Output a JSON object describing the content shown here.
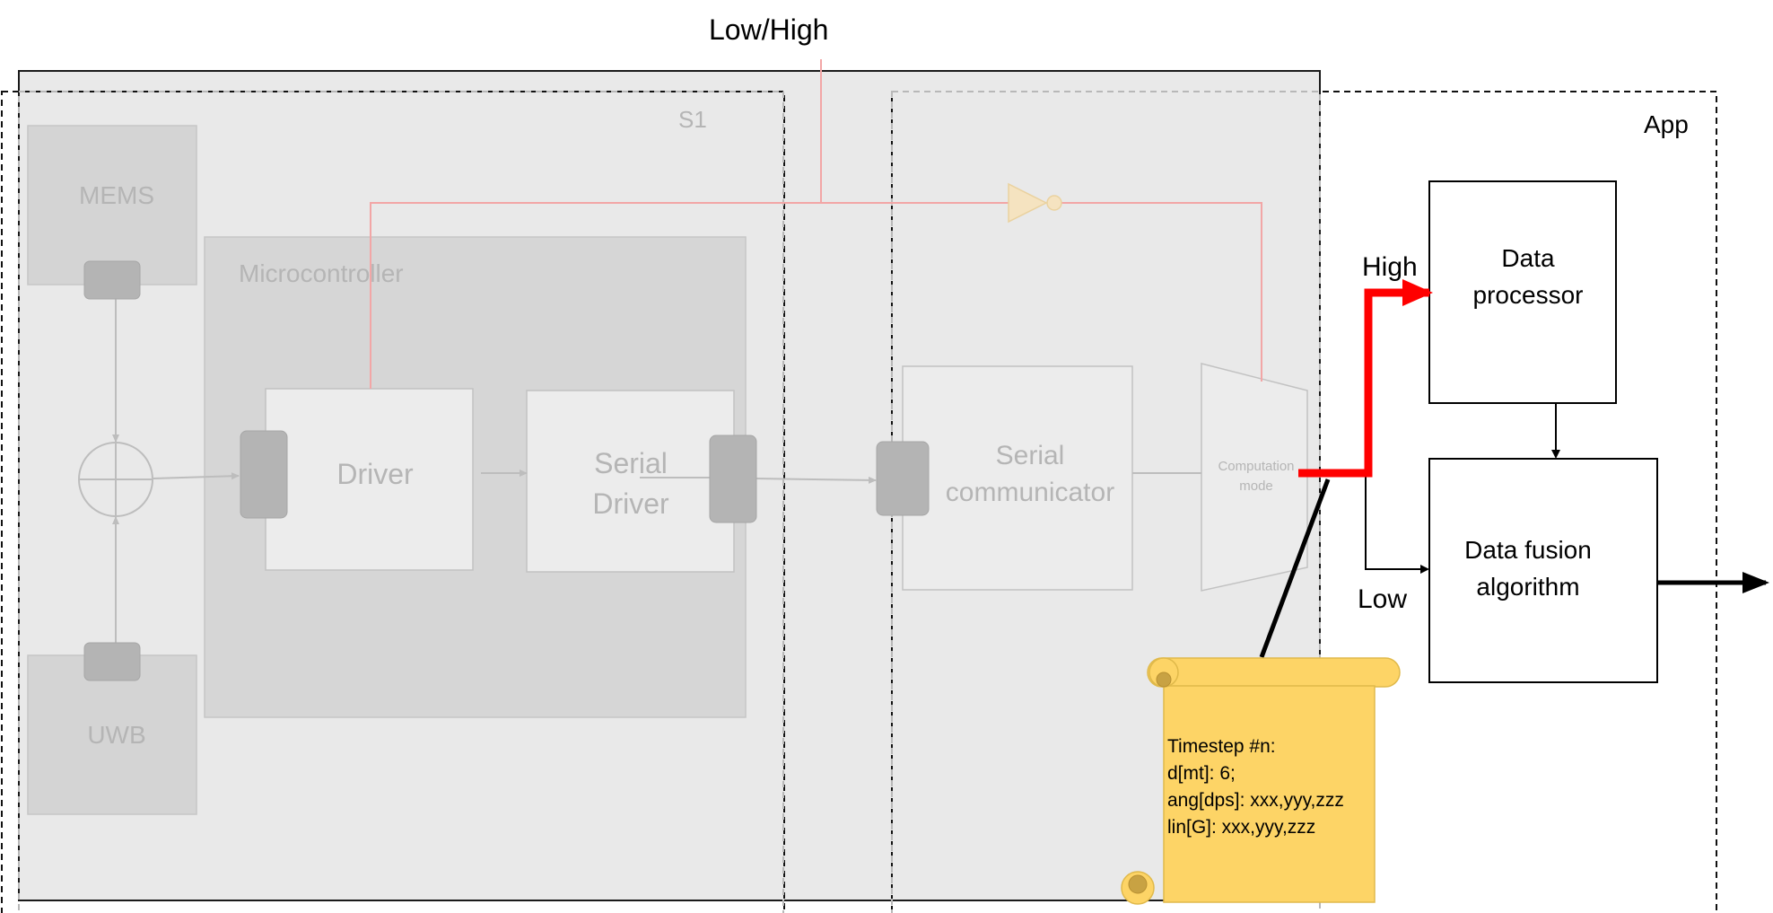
{
  "labels": {
    "low_high": "Low/High",
    "s1": "S1",
    "app": "App",
    "mems": "MEMS",
    "uwb": "UWB",
    "microcontroller": "Microcontroller",
    "driver": "Driver",
    "serial_driver_line1": "Serial",
    "serial_driver_line2": "Driver",
    "serial_comm_line1": "Serial",
    "serial_comm_line2": "communicator",
    "computation_line1": "Computation",
    "computation_line2": "mode",
    "high": "High",
    "low": "Low",
    "data_processor_line1": "Data",
    "data_processor_line2": "processor",
    "data_fusion_line1": "Data fusion",
    "data_fusion_line2": "algorithm"
  },
  "note": {
    "lines": [
      "Timestep #n:",
      "d[mt]: 6;",
      "ang[dps]: xxx,yyy,zzz",
      "lin[G]: xxx,yyy,zzz"
    ]
  },
  "colors": {
    "control_line": "#f2a6a6",
    "high_path": "#ff0000",
    "note_fill": "#fdd466",
    "inverter_fill": "#f5e3c0",
    "faded_block": "#d2d2d2",
    "connector": "#b4b4b4"
  }
}
